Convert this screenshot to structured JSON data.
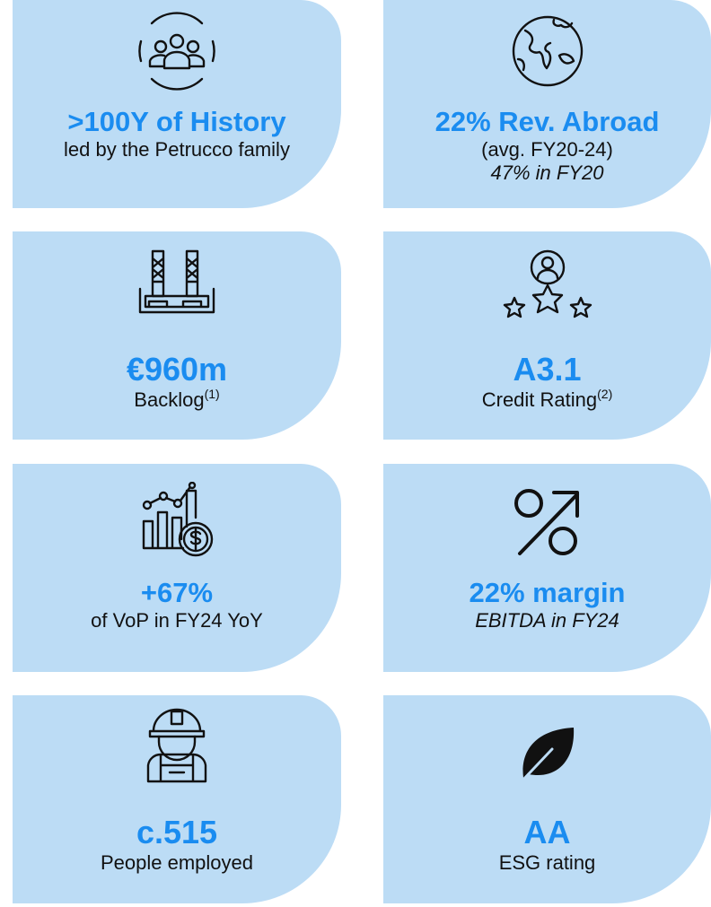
{
  "cards": [
    {
      "title": ">100Y of History",
      "lines": [
        {
          "text": "led by the Petrucco family"
        }
      ]
    },
    {
      "title": "22% Rev. Abroad",
      "lines": [
        {
          "text": "(avg. FY20-24)"
        },
        {
          "text": "47% in FY20",
          "italic": true
        }
      ]
    },
    {
      "title": "€960m",
      "lines": [
        {
          "text": "Backlog",
          "sup": "(1)"
        }
      ]
    },
    {
      "title": "A3.1",
      "lines": [
        {
          "text": "Credit Rating",
          "sup": "(2)"
        }
      ]
    },
    {
      "title": "+67%",
      "lines": [
        {
          "text": "of VoP in FY24 YoY"
        }
      ]
    },
    {
      "title": "22% margin",
      "lines": [
        {
          "text": "EBITDA in FY24",
          "italic": true
        }
      ]
    },
    {
      "title": "c.515",
      "lines": [
        {
          "text": "People employed"
        }
      ]
    },
    {
      "title": "AA",
      "lines": [
        {
          "text": "ESG rating"
        }
      ]
    }
  ]
}
